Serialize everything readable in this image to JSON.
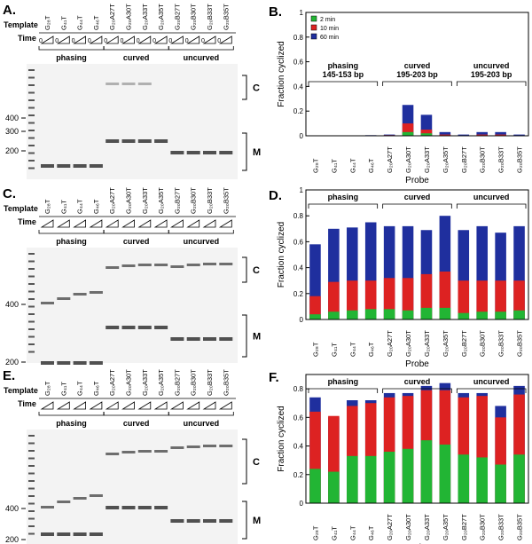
{
  "gels": [
    {
      "panel": "A.",
      "template_label": "Template",
      "time_label": "Time",
      "time_start": "0",
      "lanes": [
        "G₂₈T",
        "G₄₁T",
        "G₄₄T",
        "G₄₆T",
        "G₂₀A27T",
        "G₂₀A30T",
        "G₂₀A33T",
        "G₂₀A35T",
        "G₂₀B27T",
        "G₂₀B30T",
        "G₂₀B33T",
        "G₂₀B35T"
      ],
      "groups": [
        "phasing",
        "curved",
        "uncurved"
      ],
      "ladder_labels": [
        "400",
        "300",
        "200"
      ],
      "bracket_labels": [
        "C",
        "M"
      ]
    },
    {
      "panel": "C.",
      "template_label": "Template",
      "time_label": "Time",
      "lanes": [
        "G₂₈T",
        "G₄₁T",
        "G₄₄T",
        "G₄₆T",
        "G₂₀A27T",
        "G₂₀A30T",
        "G₂₀A33T",
        "G₂₀A35T",
        "G₂₀B27T",
        "G₂₀B30T",
        "G₂₀B33T",
        "G₂₀B35T"
      ],
      "groups": [
        "phasing",
        "curved",
        "uncurved"
      ],
      "ladder_labels": [
        "400",
        "200"
      ],
      "bracket_labels": [
        "C",
        "M"
      ]
    },
    {
      "panel": "E.",
      "template_label": "Template",
      "time_label": "Time",
      "lanes": [
        "G₂₈T",
        "G₄₁T",
        "G₄₄T",
        "G₄₆T",
        "G₂₀A27T",
        "G₂₀A30T",
        "G₂₀A33T",
        "G₂₀A35T",
        "G₂₀B27T",
        "G₂₀B30T",
        "G₂₀B33T",
        "G₂₀B35T"
      ],
      "groups": [
        "phasing",
        "curved",
        "uncurved"
      ],
      "ladder_labels": [
        "400",
        "200"
      ],
      "bracket_labels": [
        "C",
        "M"
      ]
    }
  ],
  "chart_data": [
    {
      "type": "bar",
      "panel": "B.",
      "ylabel": "Fraction cyclized",
      "xlabel": "Probe",
      "bar_mode": "overlay",
      "legend": "upper left",
      "categories": [
        "G₂₈T",
        "G₄₁T",
        "G₄₄T",
        "G₄₆T",
        "G₂₀A27T",
        "G₂₀A30T",
        "G₂₀A33T",
        "G₂₀A35T",
        "G₂₀B27T",
        "G₂₀B30T",
        "G₂₀B33T",
        "G₂₀B35T"
      ],
      "groups": [
        "phasing",
        "curved",
        "uncurved"
      ],
      "group_sizes": [
        "145-153 bp",
        "195-203 bp",
        "195-203 bp"
      ],
      "series": [
        {
          "name": "2 min",
          "color": "#22b534",
          "values": [
            0,
            0,
            0,
            0,
            0,
            0.03,
            0.02,
            0,
            0,
            0,
            0,
            0
          ]
        },
        {
          "name": "10 min",
          "color": "#dd2222",
          "values": [
            0,
            0,
            0,
            0,
            0.005,
            0.1,
            0.05,
            0.01,
            0,
            0.01,
            0.01,
            0
          ]
        },
        {
          "name": "60 min",
          "color": "#1f2f9e",
          "values": [
            0,
            0,
            0,
            0.005,
            0.01,
            0.25,
            0.17,
            0.03,
            0.01,
            0.03,
            0.03,
            0.01
          ]
        }
      ],
      "ylim": [
        0,
        1
      ],
      "yticks": [
        0,
        0.2,
        0.4,
        0.6,
        0.8,
        1
      ]
    },
    {
      "type": "bar",
      "panel": "D.",
      "ylabel": "Fraction cyclized",
      "xlabel": "Probe",
      "bar_mode": "overlay",
      "categories": [
        "G₂₈T",
        "G₄₁T",
        "G₄₄T",
        "G₄₆T",
        "G₂₀A27T",
        "G₂₀A30T",
        "G₂₀A33T",
        "G₂₀A35T",
        "G₂₀B27T",
        "G₂₀B30T",
        "G₂₀B33T",
        "G₂₀B35T"
      ],
      "groups": [
        "phasing",
        "curved",
        "uncurved"
      ],
      "series": [
        {
          "name": "2 min",
          "color": "#22b534",
          "values": [
            0.04,
            0.06,
            0.07,
            0.08,
            0.08,
            0.07,
            0.09,
            0.09,
            0.05,
            0.06,
            0.06,
            0.07
          ]
        },
        {
          "name": "10 min",
          "color": "#dd2222",
          "values": [
            0.18,
            0.29,
            0.3,
            0.3,
            0.32,
            0.32,
            0.35,
            0.37,
            0.3,
            0.3,
            0.3,
            0.3
          ]
        },
        {
          "name": "60 min",
          "color": "#1f2f9e",
          "values": [
            0.58,
            0.7,
            0.71,
            0.75,
            0.72,
            0.72,
            0.69,
            0.8,
            0.69,
            0.72,
            0.67,
            0.72
          ]
        }
      ],
      "ylim": [
        0,
        1
      ],
      "yticks": [
        0,
        0.2,
        0.4,
        0.6,
        0.8,
        1
      ]
    },
    {
      "type": "bar",
      "panel": "F.",
      "ylabel": "Fraction cyclized",
      "xlabel": "Probe",
      "bar_mode": "overlay",
      "categories": [
        "G₂₈T",
        "G₄₁T",
        "G₄₄T",
        "G₄₆T",
        "G₂₀A27T",
        "G₂₀A30T",
        "G₂₀A33T",
        "G₂₀A35T",
        "G₂₀B27T",
        "G₂₀B30T",
        "G₂₀B33T",
        "G₂₀B35T"
      ],
      "groups": [
        "phasing",
        "curved",
        "uncurved"
      ],
      "series": [
        {
          "name": "2 min",
          "color": "#22b534",
          "values": [
            0.24,
            0.22,
            0.33,
            0.33,
            0.36,
            0.38,
            0.44,
            0.41,
            0.34,
            0.32,
            0.27,
            0.34
          ]
        },
        {
          "name": "10 min",
          "color": "#dd2222",
          "values": [
            0.64,
            0.61,
            0.68,
            0.7,
            0.74,
            0.75,
            0.79,
            0.79,
            0.74,
            0.75,
            0.6,
            0.76
          ]
        },
        {
          "name": "60 min",
          "color": "#1f2f9e",
          "values": [
            0.74,
            0.6,
            0.72,
            0.72,
            0.77,
            0.77,
            0.82,
            0.84,
            0.77,
            0.77,
            0.68,
            0.82
          ]
        }
      ],
      "ylim": [
        0,
        0.9
      ],
      "yticks": [
        0,
        0.2,
        0.4,
        0.6,
        0.8
      ]
    }
  ]
}
